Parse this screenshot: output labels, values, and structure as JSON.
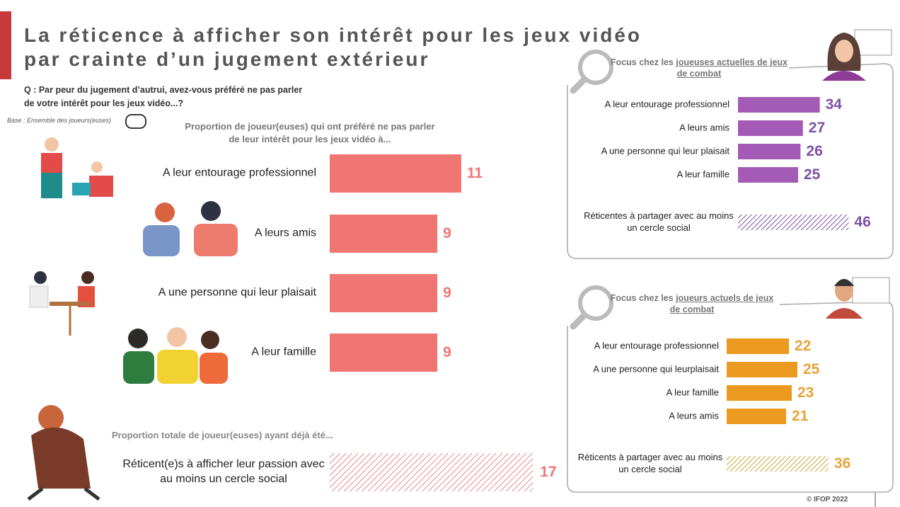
{
  "header": {
    "title_lines": [
      "La réticence à afficher son intérêt pour les jeux vidéo",
      "par crainte d’un jugement extérieur"
    ],
    "question": "Q : Par peur du jugement d’autrui, avez-vous préféré ne pas parler de votre intérêt pour les jeux vidéo...?",
    "base": "Base : Ensemble des joueurs(euses)"
  },
  "chart_data": [
    {
      "type": "bar",
      "orientation": "horizontal",
      "subtitle": "Proportion de joueur(euses) qui ont préféré ne pas parler de leur intérêt pour les jeux vidéo à...",
      "categories": [
        "A leur entourage professionnel",
        "A leurs amis",
        "A une personne qui leur plaisait",
        "A leur famille"
      ],
      "values": [
        11,
        9,
        9,
        9
      ],
      "color": "#ef7673",
      "value_color": "#ef7673"
    },
    {
      "type": "bar",
      "orientation": "horizontal",
      "pattern": "hatched",
      "title": "Proportion totale de joueur(euses) ayant déjà été...",
      "categories": [
        "Réticent(e)s à afficher leur passion avec au moins un cercle social"
      ],
      "values": [
        17
      ],
      "color": "#e88a8a",
      "value_color": "#ef7673"
    },
    {
      "type": "bar",
      "orientation": "horizontal",
      "title": "Focus chez les",
      "title_emphasis": "joueuses actuelles de jeux de combat",
      "categories": [
        "A leur entourage professionnel",
        "A leurs amis",
        "A une personne qui leur plaisait",
        "A leur famille"
      ],
      "values": [
        34,
        27,
        26,
        25
      ],
      "color": "#a45bb5",
      "value_color": "#7b52a6",
      "total": {
        "category": "Réticentes à partager avec au moins un cercle social",
        "value": 46,
        "pattern": "hatched",
        "color": "#7b52a6"
      }
    },
    {
      "type": "bar",
      "orientation": "horizontal",
      "title": "Focus chez les",
      "title_emphasis": "joueurs actuels de jeux de combat",
      "categories": [
        "A leur entourage professionnel",
        "A une personne qui leurplaisait",
        "A leur famille",
        "A leurs amis"
      ],
      "values": [
        22,
        25,
        23,
        21
      ],
      "color": "#ec9a1f",
      "value_color": "#e8a33a",
      "total": {
        "category": "Réticents à partager avec au moins un cercle social",
        "value": 36,
        "pattern": "hatched",
        "color": "#c2a73a"
      }
    }
  ],
  "footer": {
    "copyright": "© IFOP 2022"
  }
}
